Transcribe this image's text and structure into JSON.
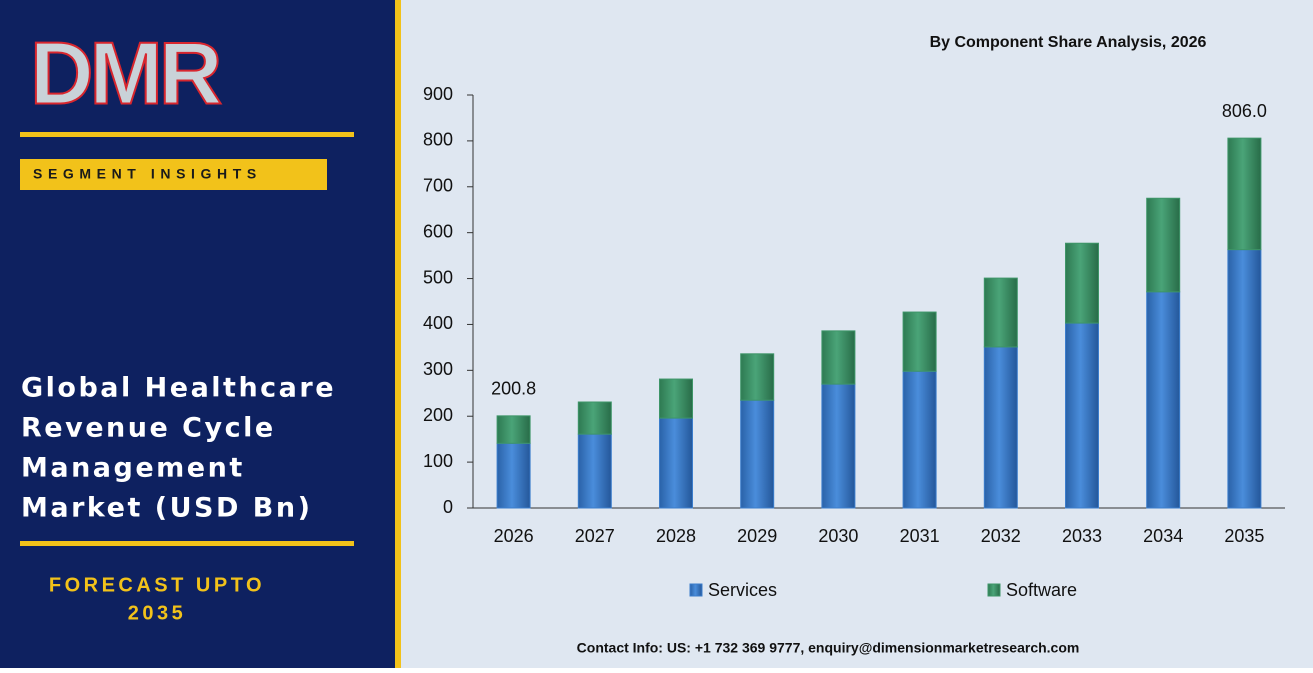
{
  "logo": {
    "text": "DMR"
  },
  "badge": "SEGMENT INSIGHTS",
  "headline": [
    "Global Healthcare",
    "Revenue Cycle",
    "Management",
    "Market (USD Bn)"
  ],
  "forecast": [
    "FORECAST UPTO",
    "2035"
  ],
  "contact": "Contact Info: US: +1 732 369 9777, enquiry@dimensionmarketresearch.com",
  "chart_data": {
    "type": "stacked_bar",
    "title": "By Component Share Analysis, 2026",
    "categories": [
      "2026",
      "2027",
      "2028",
      "2029",
      "2030",
      "2031",
      "2032",
      "2033",
      "2034",
      "2035"
    ],
    "series": [
      {
        "name": "Services",
        "color": "#3b7dcc",
        "values": [
          141,
          161,
          196,
          235,
          270,
          298,
          351,
          403,
          471,
          563
        ]
      },
      {
        "name": "Software",
        "color": "#3e9568",
        "values": [
          59.8,
          70,
          85,
          101,
          116,
          129,
          150,
          174,
          204,
          243
        ]
      }
    ],
    "total_labels": [
      {
        "category": "2026",
        "value": 200.8
      },
      {
        "category": "2035",
        "value": 806,
        "label": "806.0"
      }
    ],
    "ylim": [
      0,
      900
    ],
    "yticks": [
      0,
      100,
      200,
      300,
      400,
      500,
      600,
      700,
      800,
      900
    ],
    "grid": false,
    "legend": "bottom"
  }
}
